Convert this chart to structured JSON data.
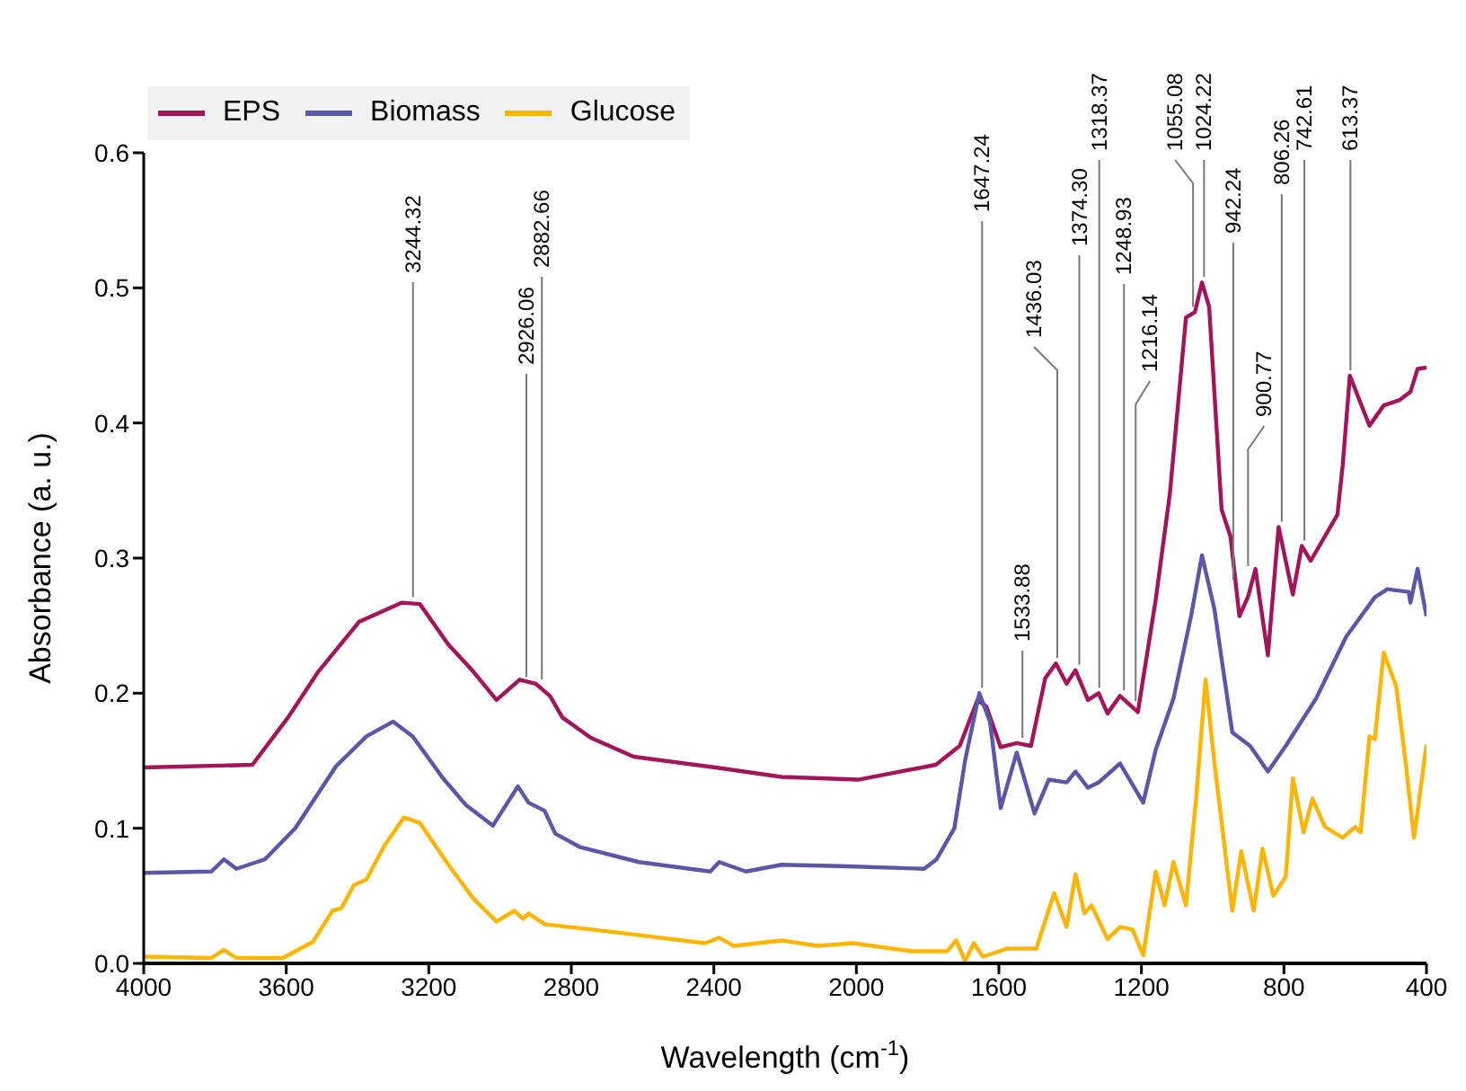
{
  "chart_data": {
    "type": "line",
    "xlabel": "Wavelength (cm$^{-1}$)",
    "ylabel": "Absorbance (a. u.)",
    "xlim": [
      4000,
      400
    ],
    "xticks": [
      4000,
      3600,
      3200,
      2800,
      2400,
      2000,
      1600,
      1200,
      800,
      400
    ],
    "ylim": [
      0,
      0.6
    ],
    "yticks": [
      {
        "value": 0,
        "label": "0.0"
      },
      0.1,
      0.2,
      0.3,
      0.4,
      0.5,
      0.6
    ],
    "grid": false,
    "legend": "top left",
    "marker": "none",
    "line_style": "solid",
    "series": [
      {
        "name": "EPS",
        "color": "#a3145a",
        "x": [
          4000,
          3695,
          3595,
          3510,
          3395,
          3275,
          3225,
          3145,
          3075,
          3010,
          2945,
          2900,
          2860,
          2825,
          2745,
          2625,
          2395,
          2210,
          1995,
          1777,
          1710,
          1660,
          1635,
          1595,
          1550,
          1510,
          1470,
          1440,
          1410,
          1385,
          1350,
          1320,
          1295,
          1260,
          1235,
          1210,
          1160,
          1120,
          1075,
          1050,
          1030,
          1010,
          975,
          950,
          925,
          900,
          880,
          845,
          815,
          775,
          750,
          725,
          650,
          635,
          615,
          560,
          520,
          475,
          445,
          425,
          400
        ],
        "values": [
          0.145,
          0.147,
          0.182,
          0.216,
          0.253,
          0.267,
          0.266,
          0.236,
          0.216,
          0.195,
          0.21,
          0.207,
          0.198,
          0.182,
          0.167,
          0.153,
          0.145,
          0.138,
          0.136,
          0.147,
          0.161,
          0.195,
          0.19,
          0.16,
          0.163,
          0.161,
          0.211,
          0.222,
          0.207,
          0.217,
          0.195,
          0.2,
          0.185,
          0.198,
          0.192,
          0.186,
          0.269,
          0.348,
          0.478,
          0.482,
          0.504,
          0.486,
          0.336,
          0.316,
          0.257,
          0.272,
          0.292,
          0.228,
          0.323,
          0.273,
          0.309,
          0.298,
          0.332,
          0.369,
          0.435,
          0.398,
          0.413,
          0.417,
          0.423,
          0.44,
          0.441
        ]
      },
      {
        "name": "Biomass",
        "color": "#5b57a8",
        "x": [
          4000,
          3810,
          3775,
          3740,
          3660,
          3575,
          3460,
          3375,
          3300,
          3245,
          3160,
          3095,
          3020,
          2950,
          2920,
          2875,
          2845,
          2775,
          2610,
          2410,
          2385,
          2310,
          2210,
          2045,
          1810,
          1775,
          1725,
          1695,
          1655,
          1625,
          1595,
          1550,
          1500,
          1460,
          1410,
          1385,
          1350,
          1320,
          1260,
          1195,
          1160,
          1110,
          1060,
          1030,
          995,
          945,
          895,
          845,
          795,
          710,
          625,
          545,
          510,
          450,
          445,
          425,
          400
        ],
        "values": [
          0.067,
          0.068,
          0.077,
          0.07,
          0.077,
          0.1,
          0.146,
          0.168,
          0.179,
          0.168,
          0.137,
          0.117,
          0.102,
          0.131,
          0.119,
          0.113,
          0.096,
          0.086,
          0.075,
          0.068,
          0.075,
          0.068,
          0.073,
          0.072,
          0.07,
          0.077,
          0.1,
          0.15,
          0.2,
          0.179,
          0.115,
          0.156,
          0.111,
          0.136,
          0.134,
          0.142,
          0.13,
          0.134,
          0.148,
          0.119,
          0.158,
          0.196,
          0.258,
          0.302,
          0.262,
          0.171,
          0.161,
          0.142,
          0.161,
          0.196,
          0.242,
          0.271,
          0.277,
          0.275,
          0.267,
          0.292,
          0.257
        ]
      },
      {
        "name": "Glucose",
        "color": "#ffb400",
        "x": [
          4000,
          3810,
          3775,
          3740,
          3610,
          3525,
          3470,
          3445,
          3410,
          3375,
          3325,
          3270,
          3225,
          3145,
          3075,
          3010,
          2960,
          2935,
          2920,
          2875,
          2675,
          2425,
          2385,
          2345,
          2210,
          2110,
          2010,
          1845,
          1745,
          1720,
          1695,
          1670,
          1645,
          1575,
          1495,
          1445,
          1410,
          1385,
          1360,
          1340,
          1295,
          1260,
          1225,
          1195,
          1160,
          1135,
          1110,
          1075,
          1045,
          1020,
          995,
          945,
          920,
          885,
          860,
          830,
          795,
          775,
          745,
          720,
          685,
          635,
          600,
          585,
          560,
          545,
          520,
          485,
          460,
          435,
          400
        ],
        "values": [
          0.005,
          0.004,
          0.01,
          0.004,
          0.004,
          0.016,
          0.039,
          0.041,
          0.058,
          0.062,
          0.087,
          0.108,
          0.104,
          0.073,
          0.048,
          0.031,
          0.039,
          0.033,
          0.037,
          0.029,
          0.023,
          0.015,
          0.019,
          0.013,
          0.017,
          0.013,
          0.015,
          0.009,
          0.009,
          0.017,
          0.002,
          0.015,
          0.005,
          0.011,
          0.011,
          0.052,
          0.027,
          0.066,
          0.037,
          0.043,
          0.018,
          0.027,
          0.025,
          0.006,
          0.068,
          0.043,
          0.075,
          0.043,
          0.127,
          0.21,
          0.148,
          0.039,
          0.083,
          0.039,
          0.085,
          0.05,
          0.064,
          0.137,
          0.097,
          0.122,
          0.101,
          0.093,
          0.101,
          0.097,
          0.168,
          0.166,
          0.23,
          0.205,
          0.152,
          0.093,
          0.162
        ]
      }
    ],
    "annotations": [
      {
        "text": "3244.32",
        "x": 3244.32,
        "y": 0.267
      },
      {
        "text": "2926.06",
        "x": 2926.06,
        "y": 0.208
      },
      {
        "text": "2882.66",
        "x": 2882.66,
        "y": 0.206
      },
      {
        "text": "1647.24",
        "x": 1647.24,
        "y": 0.2
      },
      {
        "text": "1533.88",
        "x": 1533.88,
        "y": 0.163
      },
      {
        "text": "1436.03",
        "x": 1436.03,
        "y": 0.222
      },
      {
        "text": "1374.30",
        "x": 1374.3,
        "y": 0.217
      },
      {
        "text": "1318.37",
        "x": 1318.37,
        "y": 0.2
      },
      {
        "text": "1248.93",
        "x": 1248.93,
        "y": 0.198
      },
      {
        "text": "1216.14",
        "x": 1216.14,
        "y": 0.19
      },
      {
        "text": "1055.08",
        "x": 1055.08,
        "y": 0.482
      },
      {
        "text": "1024.22",
        "x": 1024.22,
        "y": 0.504
      },
      {
        "text": "942.24",
        "x": 942.24,
        "y": 0.28
      },
      {
        "text": "900.77",
        "x": 900.77,
        "y": 0.29
      },
      {
        "text": "806.26",
        "x": 806.26,
        "y": 0.323
      },
      {
        "text": "742.61",
        "x": 742.61,
        "y": 0.309
      },
      {
        "text": "613.37",
        "x": 613.37,
        "y": 0.435
      }
    ]
  }
}
